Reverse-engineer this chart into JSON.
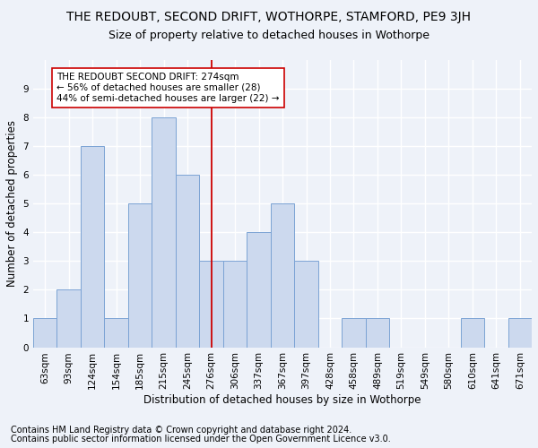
{
  "title": "THE REDOUBT, SECOND DRIFT, WOTHORPE, STAMFORD, PE9 3JH",
  "subtitle": "Size of property relative to detached houses in Wothorpe",
  "xlabel": "Distribution of detached houses by size in Wothorpe",
  "ylabel": "Number of detached properties",
  "categories": [
    "63sqm",
    "93sqm",
    "124sqm",
    "154sqm",
    "185sqm",
    "215sqm",
    "245sqm",
    "276sqm",
    "306sqm",
    "337sqm",
    "367sqm",
    "397sqm",
    "428sqm",
    "458sqm",
    "489sqm",
    "519sqm",
    "549sqm",
    "580sqm",
    "610sqm",
    "641sqm",
    "671sqm"
  ],
  "values": [
    1,
    2,
    7,
    1,
    5,
    8,
    6,
    3,
    3,
    4,
    5,
    3,
    0,
    1,
    1,
    0,
    0,
    0,
    1,
    0,
    1
  ],
  "bar_color": "#ccd9ee",
  "bar_edge_color": "#7ba3d4",
  "vline_x_index": 7,
  "vline_color": "#cc0000",
  "annotation_text": "THE REDOUBT SECOND DRIFT: 274sqm\n← 56% of detached houses are smaller (28)\n44% of semi-detached houses are larger (22) →",
  "annotation_box_color": "white",
  "annotation_box_edge_color": "#cc0000",
  "ylim": [
    0,
    10
  ],
  "yticks": [
    0,
    1,
    2,
    3,
    4,
    5,
    6,
    7,
    8,
    9,
    10
  ],
  "footer1": "Contains HM Land Registry data © Crown copyright and database right 2024.",
  "footer2": "Contains public sector information licensed under the Open Government Licence v3.0.",
  "background_color": "#eef2f9",
  "grid_color": "white",
  "title_fontsize": 10,
  "subtitle_fontsize": 9,
  "axis_label_fontsize": 8.5,
  "tick_fontsize": 7.5,
  "annotation_fontsize": 7.5,
  "footer_fontsize": 7
}
